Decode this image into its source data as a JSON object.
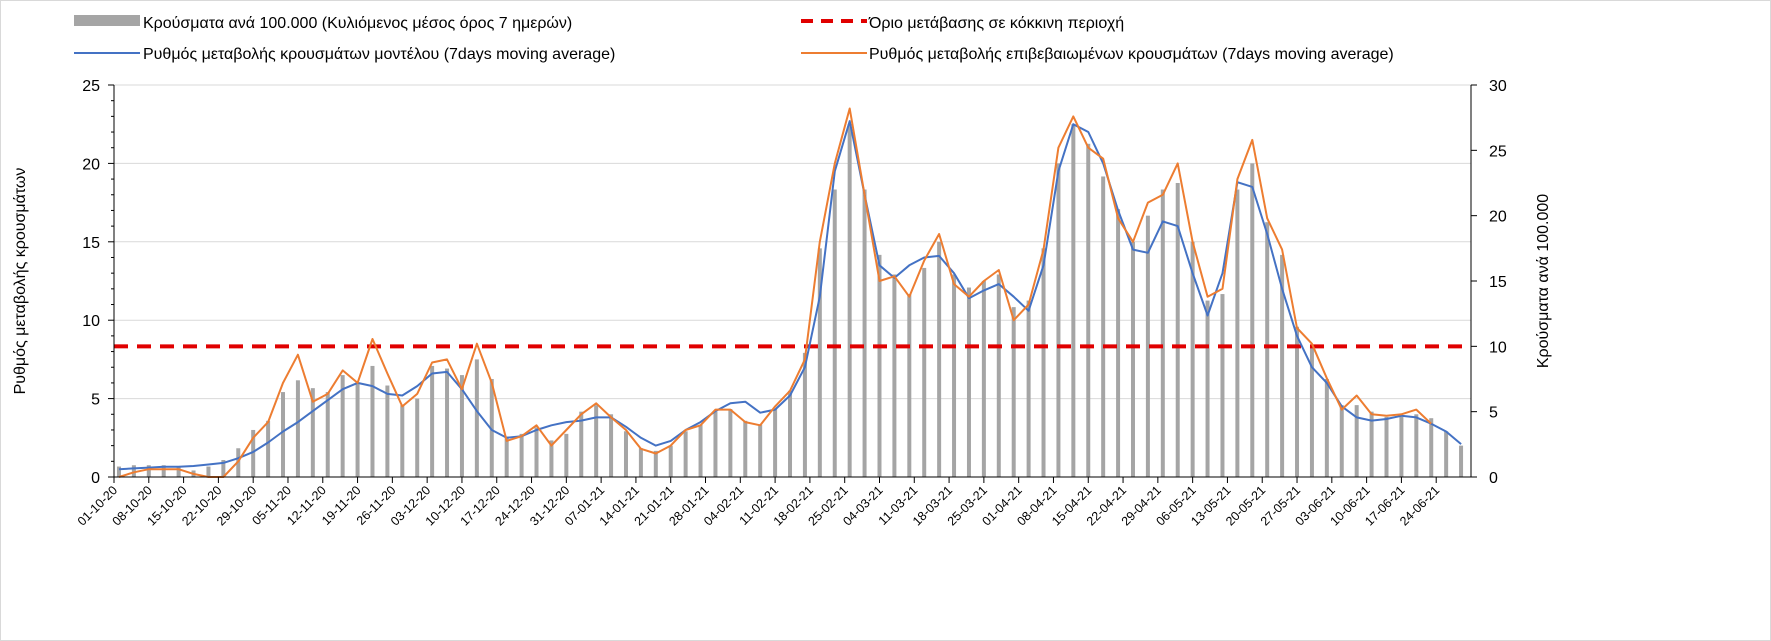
{
  "chart_data": {
    "type": "bar+line",
    "title": "",
    "legend": [
      {
        "label": "Κρούσματα ανά 100.000 (Κυλιόμενος μέσος όρος 7 ημερών)",
        "color": "#a5a5a5",
        "kind": "bar"
      },
      {
        "label": "Όριο μετάβασης σε κόκκινη περιοχή",
        "color": "#e00000",
        "kind": "dashed"
      },
      {
        "label": "Ρυθμός μεταβολής κρουσμάτων μοντέλου (7days moving average)",
        "color": "#4472c4",
        "kind": "line"
      },
      {
        "label": "Ρυθμός μεταβολής επιβεβαιωμένων κρουσμάτων (7days moving average)",
        "color": "#ed7d31",
        "kind": "line"
      }
    ],
    "legend_position": "top",
    "ylabel_left": "Ρυθμός μεταβολής κρουσμάτων",
    "ylabel_right": "Κρούσματα ανά 100.000",
    "ylim_left": [
      0,
      25
    ],
    "ylim_right": [
      0,
      30
    ],
    "yticks_left": [
      "0",
      "5",
      "10",
      "15",
      "20",
      "25"
    ],
    "yticks_right": [
      "0",
      "5",
      "10",
      "15",
      "20",
      "25",
      "30"
    ],
    "threshold_right": 10,
    "start_date": "2020-10-01",
    "total_days": 273,
    "sample_step_days": 3,
    "x_tick_labels": [
      "01-10-20",
      "08-10-20",
      "15-10-20",
      "22-10-20",
      "29-10-20",
      "05-11-20",
      "12-11-20",
      "19-11-20",
      "26-11-20",
      "03-12-20",
      "10-12-20",
      "17-12-20",
      "24-12-20",
      "31-12-20",
      "07-01-21",
      "14-01-21",
      "21-01-21",
      "28-01-21",
      "04-02-21",
      "11-02-21",
      "18-02-21",
      "25-02-21",
      "04-03-21",
      "11-03-21",
      "18-03-21",
      "25-03-21",
      "01-04-21",
      "08-04-21",
      "15-04-21",
      "22-04-21",
      "29-04-21",
      "06-05-21",
      "13-05-21",
      "20-05-21",
      "27-05-21",
      "03-06-21",
      "10-06-21",
      "17-06-21",
      "24-06-21"
    ],
    "series": [
      {
        "name": "cases_per_100k",
        "axis": "right",
        "values": [
          0.8,
          0.9,
          0.9,
          0.9,
          0.8,
          0.5,
          0.8,
          1.3,
          2.2,
          3.6,
          4.3,
          6.5,
          7.4,
          6.8,
          6.5,
          7.8,
          7.2,
          8.5,
          7.0,
          5.5,
          6.0,
          8.5,
          8.3,
          7.8,
          9.0,
          7.5,
          3.1,
          3.3,
          3.8,
          2.8,
          3.3,
          5.0,
          5.5,
          4.8,
          3.5,
          2.2,
          2.0,
          2.4,
          3.5,
          4.0,
          5.0,
          5.2,
          4.3,
          4.0,
          5.2,
          6.6,
          9.5,
          17.5,
          22,
          27,
          22,
          17,
          15.5,
          14,
          16,
          18,
          15.5,
          14.5,
          15,
          15.5,
          13,
          13.5,
          17.5,
          24,
          27,
          25.5,
          23,
          20.5,
          18,
          20,
          22,
          22.5,
          18,
          13.5,
          14,
          22,
          24,
          19.5,
          17,
          11.5,
          10,
          7.5,
          5.5,
          5.5,
          5,
          4.6,
          4.6,
          4.8,
          4.5,
          3.5,
          2.4
        ]
      },
      {
        "name": "model_rate",
        "axis": "left",
        "values": [
          0.5,
          0.55,
          0.6,
          0.65,
          0.65,
          0.7,
          0.8,
          0.9,
          1.2,
          1.6,
          2.2,
          2.9,
          3.5,
          4.2,
          4.9,
          5.6,
          6.0,
          5.8,
          5.3,
          5.2,
          5.8,
          6.6,
          6.7,
          5.6,
          4.2,
          3.0,
          2.5,
          2.6,
          3.0,
          3.3,
          3.5,
          3.6,
          3.8,
          3.8,
          3.2,
          2.5,
          2.0,
          2.3,
          3.0,
          3.5,
          4.2,
          4.7,
          4.8,
          4.1,
          4.3,
          5.2,
          7.0,
          11.5,
          19.5,
          22.7,
          18,
          13.5,
          12.7,
          13.5,
          14.0,
          14.1,
          13.0,
          11.4,
          11.9,
          12.3,
          11.5,
          10.6,
          13.5,
          19.5,
          22.5,
          22.0,
          20.0,
          17.0,
          14.5,
          14.3,
          16.3,
          16.0,
          13.0,
          10.3,
          13.0,
          18.8,
          18.5,
          15.5,
          12.0,
          9.0,
          7.0,
          6.0,
          4.5,
          3.8,
          3.6,
          3.7,
          3.9,
          3.8,
          3.4,
          2.9,
          2.1
        ]
      },
      {
        "name": "confirmed_rate",
        "axis": "left",
        "values": [
          0,
          0.3,
          0.5,
          0.5,
          0.5,
          0.2,
          0,
          0,
          1.0,
          2.5,
          3.5,
          6.0,
          7.8,
          4.8,
          5.3,
          6.8,
          6.0,
          8.8,
          6.6,
          4.5,
          5.3,
          7.3,
          7.5,
          5.6,
          8.5,
          6.0,
          2.3,
          2.6,
          3.3,
          2.0,
          3.0,
          4.0,
          4.7,
          3.8,
          3.0,
          1.8,
          1.5,
          2.0,
          3.0,
          3.3,
          4.3,
          4.3,
          3.5,
          3.3,
          4.5,
          5.5,
          7.5,
          15,
          20,
          23.5,
          18,
          12.5,
          12.8,
          11.5,
          13.8,
          15.5,
          12.3,
          11.5,
          12.5,
          13.2,
          10,
          11.0,
          14.5,
          21,
          23.0,
          21,
          20.3,
          16.5,
          15,
          17.5,
          18.0,
          20,
          15,
          11.5,
          12.0,
          19.0,
          21.5,
          16.5,
          14.5,
          9.5,
          8.5,
          6.3,
          4.3,
          5.2,
          4.0,
          3.9,
          4.0,
          4.3,
          3.4,
          null,
          null
        ]
      }
    ]
  }
}
